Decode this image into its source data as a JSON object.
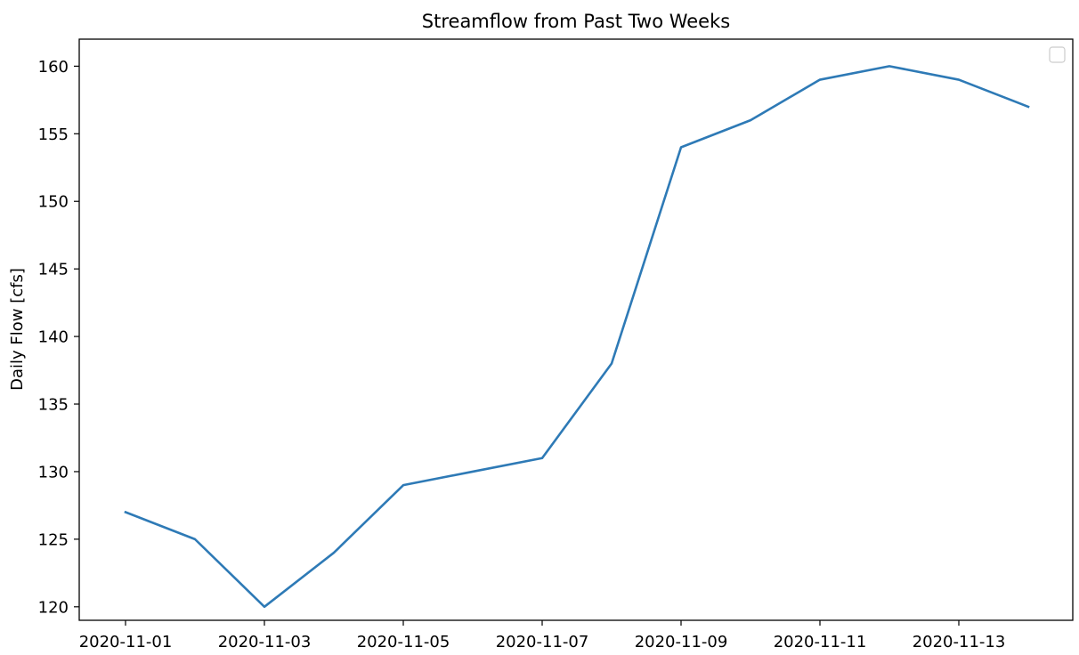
{
  "chart_data": {
    "type": "line",
    "title": "Streamflow from Past Two Weeks",
    "xlabel": "",
    "ylabel": "Daily Flow [cfs]",
    "x": [
      "2020-11-01",
      "2020-11-02",
      "2020-11-03",
      "2020-11-04",
      "2020-11-05",
      "2020-11-06",
      "2020-11-07",
      "2020-11-08",
      "2020-11-09",
      "2020-11-10",
      "2020-11-11",
      "2020-11-12",
      "2020-11-13",
      "2020-11-14"
    ],
    "series": [
      {
        "values": [
          127,
          125,
          120,
          124,
          129,
          130,
          131,
          138,
          154,
          156,
          159,
          160,
          159,
          157
        ],
        "color": "#2e7ab6"
      }
    ],
    "x_ticks": [
      "2020-11-01",
      "2020-11-03",
      "2020-11-05",
      "2020-11-07",
      "2020-11-09",
      "2020-11-11",
      "2020-11-13"
    ],
    "y_ticks": [
      120,
      125,
      130,
      135,
      140,
      145,
      150,
      155,
      160
    ],
    "ylim": [
      119,
      162
    ],
    "grid": false,
    "legend": {
      "position": "top-right",
      "entries": []
    }
  }
}
